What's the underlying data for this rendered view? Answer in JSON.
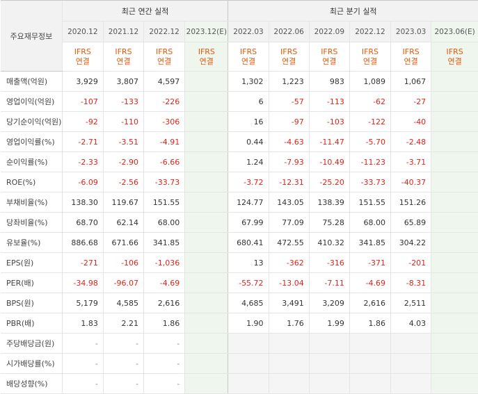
{
  "header": {
    "corner_label": "주요재무정보",
    "annual_label": "최근 연간 실적",
    "quarter_label": "최근 분기 실적"
  },
  "periods": [
    {
      "label": "2020.12",
      "ifrs1": "IFRS",
      "ifrs2": "연결",
      "est": false
    },
    {
      "label": "2021.12",
      "ifrs1": "IFRS",
      "ifrs2": "연결",
      "est": false
    },
    {
      "label": "2022.12",
      "ifrs1": "IFRS",
      "ifrs2": "연결",
      "est": false
    },
    {
      "label": "2023.12(E)",
      "ifrs1": "IFRS",
      "ifrs2": "연결",
      "est": true
    },
    {
      "label": "2022.03",
      "ifrs1": "IFRS",
      "ifrs2": "연결",
      "est": false
    },
    {
      "label": "2022.06",
      "ifrs1": "IFRS",
      "ifrs2": "연결",
      "est": false
    },
    {
      "label": "2022.09",
      "ifrs1": "IFRS",
      "ifrs2": "연결",
      "est": false
    },
    {
      "label": "2022.12",
      "ifrs1": "IFRS",
      "ifrs2": "연결",
      "est": false
    },
    {
      "label": "2023.03",
      "ifrs1": "IFRS",
      "ifrs2": "연결",
      "est": false
    },
    {
      "label": "2023.06(E)",
      "ifrs1": "IFRS",
      "ifrs2": "연결",
      "est": true
    }
  ],
  "rows": [
    {
      "label": "매출액(억원)",
      "values": [
        "3,929",
        "3,807",
        "4,597",
        "",
        "1,302",
        "1,223",
        "983",
        "1,089",
        "1,067",
        ""
      ],
      "group_start": true
    },
    {
      "label": "영업이익(억원)",
      "values": [
        "-107",
        "-133",
        "-226",
        "",
        "6",
        "-57",
        "-113",
        "-62",
        "-27",
        ""
      ]
    },
    {
      "label": "당기순이익(억원)",
      "values": [
        "-92",
        "-110",
        "-306",
        "",
        "16",
        "-97",
        "-103",
        "-122",
        "-40",
        ""
      ]
    },
    {
      "label": "영업이익률(%)",
      "values": [
        "-2.71",
        "-3.51",
        "-4.91",
        "",
        "0.44",
        "-4.63",
        "-11.47",
        "-5.70",
        "-2.48",
        ""
      ],
      "group_start": true
    },
    {
      "label": "순이익률(%)",
      "values": [
        "-2.33",
        "-2.90",
        "-6.66",
        "",
        "1.24",
        "-7.93",
        "-10.49",
        "-11.23",
        "-3.71",
        ""
      ]
    },
    {
      "label": "ROE(%)",
      "values": [
        "-6.09",
        "-2.56",
        "-33.73",
        "",
        "-3.72",
        "-12.31",
        "-25.20",
        "-33.73",
        "-40.37",
        ""
      ]
    },
    {
      "label": "부채비율(%)",
      "values": [
        "138.30",
        "119.67",
        "151.55",
        "",
        "124.77",
        "143.05",
        "138.39",
        "151.55",
        "151.26",
        ""
      ],
      "group_start": true
    },
    {
      "label": "당좌비율(%)",
      "values": [
        "68.70",
        "62.14",
        "68.00",
        "",
        "67.99",
        "77.09",
        "75.28",
        "68.00",
        "65.89",
        ""
      ]
    },
    {
      "label": "유보율(%)",
      "values": [
        "886.68",
        "671.66",
        "341.85",
        "",
        "680.41",
        "472.55",
        "410.32",
        "341.85",
        "304.22",
        ""
      ]
    },
    {
      "label": "EPS(원)",
      "values": [
        "-271",
        "-106",
        "-1,036",
        "",
        "13",
        "-362",
        "-316",
        "-371",
        "-201",
        ""
      ],
      "group_start": true
    },
    {
      "label": "PER(배)",
      "values": [
        "-34.98",
        "-96.07",
        "-4.69",
        "",
        "-55.72",
        "-13.04",
        "-7.11",
        "-4.69",
        "-8.31",
        ""
      ]
    },
    {
      "label": "BPS(원)",
      "values": [
        "5,179",
        "4,585",
        "2,616",
        "",
        "4,685",
        "3,491",
        "3,209",
        "2,616",
        "2,511",
        ""
      ]
    },
    {
      "label": "PBR(배)",
      "values": [
        "1.83",
        "2.21",
        "1.86",
        "",
        "1.90",
        "1.76",
        "1.99",
        "1.86",
        "4.03",
        ""
      ]
    },
    {
      "label": "주당배당금(원)",
      "values": [
        "-",
        "-",
        "-",
        "",
        "",
        "",
        "",
        "",
        "",
        ""
      ],
      "group_start": true
    },
    {
      "label": "시가배당률(%)",
      "values": [
        "-",
        "-",
        "-",
        "",
        "",
        "",
        "",
        "",
        "",
        ""
      ]
    },
    {
      "label": "배당성향(%)",
      "values": [
        "-",
        "-",
        "-",
        "",
        "",
        "",
        "",
        "",
        "",
        ""
      ]
    }
  ],
  "colors": {
    "negative": "#e0241b",
    "ifrs": "#e25a0b",
    "estimate_bg": "#eef6ee",
    "header_bg": "#f2f2f2"
  }
}
